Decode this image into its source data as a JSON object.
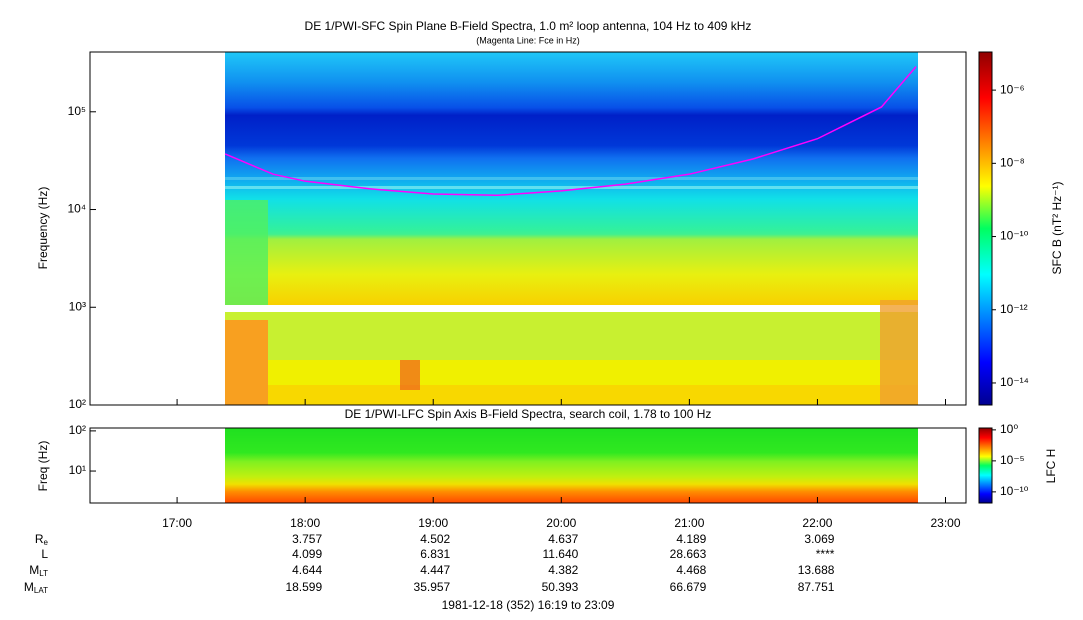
{
  "chart_data": [
    {
      "type": "spectrogram",
      "title": "DE 1/PWI-SFC  Spin Plane B-Field Spectra, 1.0 m² loop antenna, 104 Hz to 409 kHz",
      "subtitle": "(Magenta Line: Fce in Hz)",
      "y_label": "Frequency (Hz)",
      "log_y": true,
      "xlim": [
        16.32,
        23.16
      ],
      "ylim": [
        100,
        409000
      ],
      "yticks": [
        {
          "value": 100,
          "label": "10²"
        },
        {
          "value": 1000,
          "label": "10³"
        },
        {
          "value": 10000,
          "label": "10⁴"
        },
        {
          "value": 100000,
          "label": "10⁵"
        }
      ],
      "x": [
        17.375,
        17.75,
        18.0,
        18.5,
        19.0,
        19.5,
        20.0,
        20.5,
        21.0,
        21.5,
        22.0,
        22.5,
        22.77
      ],
      "series": [
        {
          "name": "Fce",
          "color": "#ff00ff",
          "values": [
            37000,
            23000,
            19500,
            16300,
            14400,
            14000,
            15500,
            18200,
            23000,
            33000,
            53000,
            112000,
            290000
          ]
        }
      ],
      "colorbar": {
        "label": "SFC B (nT² Hz⁻¹)",
        "lim": [
          2.5e-15,
          1.1e-05
        ],
        "ticks": [
          {
            "value": 1e-06,
            "label": "10⁻⁶"
          },
          {
            "value": 1e-08,
            "label": "10⁻⁸"
          },
          {
            "value": 1e-10,
            "label": "10⁻¹⁰"
          },
          {
            "value": 1e-12,
            "label": "10⁻¹²"
          },
          {
            "value": 1e-14,
            "label": "10⁻¹⁴"
          }
        ]
      }
    },
    {
      "type": "spectrogram",
      "title": "DE 1/PWI-LFC  Spin Axis B-Field Spectra, search coil, 1.78 to 100 Hz",
      "y_label": "Freq (Hz)",
      "log_y": true,
      "xlim": [
        16.32,
        23.16
      ],
      "xticks": [
        {
          "value": 17,
          "label": "17:00"
        },
        {
          "value": 18,
          "label": "18:00"
        },
        {
          "value": 19,
          "label": "19:00"
        },
        {
          "value": 20,
          "label": "20:00"
        },
        {
          "value": 21,
          "label": "21:00"
        },
        {
          "value": 22,
          "label": "22:00"
        },
        {
          "value": 23,
          "label": "23:00"
        }
      ],
      "ylim": [
        1.6,
        118
      ],
      "yticks": [
        {
          "value": 10,
          "label": "10¹"
        },
        {
          "value": 100,
          "label": "10²"
        }
      ],
      "colorbar": {
        "label": "LFC H",
        "lim": [
          1.6e-12,
          2
        ],
        "ticks": [
          {
            "value": 1,
            "label": "10⁰"
          },
          {
            "value": 1e-05,
            "label": "10⁻⁵"
          },
          {
            "value": 1e-10,
            "label": "10⁻¹⁰"
          }
        ]
      }
    }
  ],
  "orbit": {
    "rows": [
      {
        "label": "R",
        "sub": "e",
        "values": [
          "3.757",
          "4.502",
          "4.637",
          "4.189",
          "3.069"
        ]
      },
      {
        "label": "L",
        "values": [
          "4.099",
          "6.831",
          "11.640",
          "28.663",
          "****"
        ]
      },
      {
        "label": "M",
        "sub": "LT",
        "values": [
          "4.644",
          "4.447",
          "4.382",
          "4.468",
          "13.688"
        ]
      },
      {
        "label": "M",
        "sub": "LAT",
        "values": [
          "18.599",
          "35.957",
          "50.393",
          "66.679",
          "87.751"
        ]
      }
    ]
  },
  "footer": "1981-12-18 (352) 16:19 to 23:09"
}
